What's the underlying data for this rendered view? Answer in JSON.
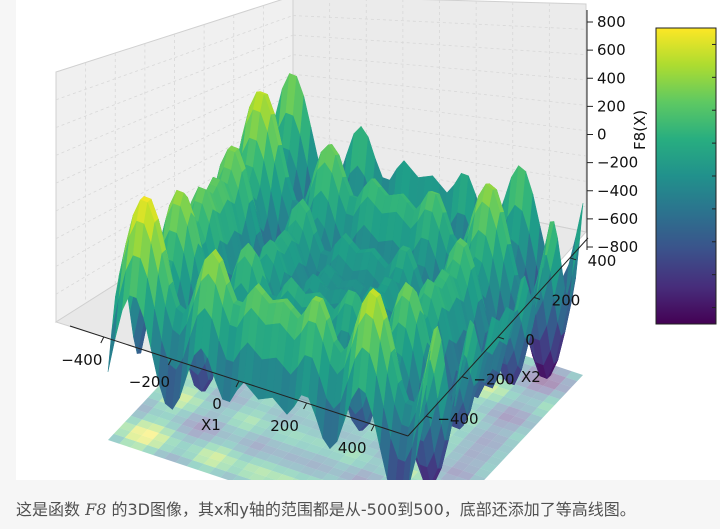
{
  "chart_data": {
    "type": "surface3d",
    "function_name": "F8",
    "x": [
      -500,
      -400,
      -300,
      -200,
      -100,
      0,
      100,
      200,
      300,
      400,
      500
    ],
    "y": [
      -500,
      -400,
      -300,
      -200,
      -100,
      0,
      100,
      200,
      300,
      400,
      500
    ],
    "xlabel": "X1",
    "ylabel": "X2",
    "zlabel": "F8(X)",
    "x_ticks": [
      "−400",
      "−200",
      "0",
      "200",
      "400"
    ],
    "y_ticks": [
      "−400",
      "−200",
      "0",
      "200",
      "400"
    ],
    "z_ticks": [
      "−800",
      "−600",
      "−400",
      "−200",
      "0",
      "200",
      "400",
      "600",
      "800"
    ],
    "xlim": [
      -500,
      500
    ],
    "ylim": [
      -500,
      500
    ],
    "zlim": [
      -838,
      838
    ],
    "colormap": "viridis",
    "colorbar": true,
    "floor_contour": true,
    "grid": true
  },
  "caption": {
    "text_before": "这是函数 ",
    "math": "F8",
    "text_after": " 的3D图像，其x和y轴的范围都是从-500到500，底部还添加了等高线图。"
  }
}
